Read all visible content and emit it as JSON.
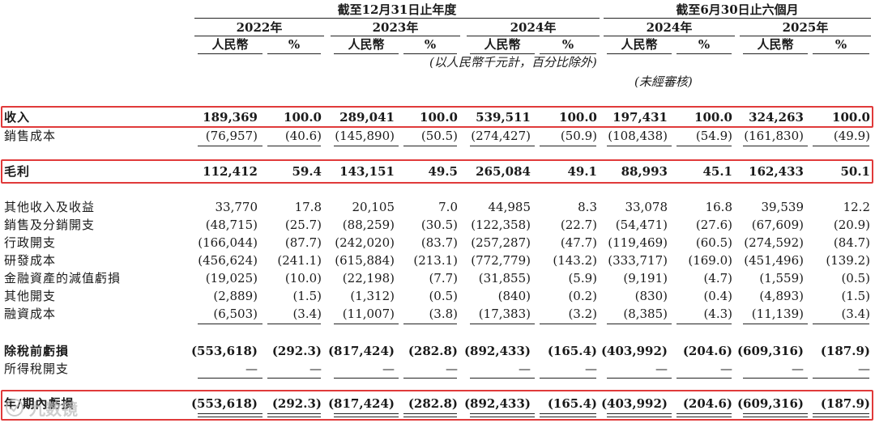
{
  "header": {
    "group_annual": "截至12月31日止年度",
    "group_half": "截至6月30日止六個月",
    "years": [
      "2022年",
      "2023年",
      "2024年",
      "2024年",
      "2025年"
    ],
    "currency_label": "人民幣",
    "percent_label": "%",
    "unit_note": "(以人民幣千元計，百分比除外)",
    "audit_note": "(未經審核)"
  },
  "rows": [
    {
      "label": "收入",
      "bold": true,
      "values": [
        "189,369",
        "100.0",
        "289,041",
        "100.0",
        "539,511",
        "100.0",
        "197,431",
        "100.0",
        "324,263",
        "100.0"
      ]
    },
    {
      "label": "銷售成本",
      "bold": false,
      "values": [
        "(76,957)",
        "(40.6)",
        "(145,890)",
        "(50.5)",
        "(274,427)",
        "(50.9)",
        "(108,438)",
        "(54.9)",
        "(161,830)",
        "(49.9)"
      ]
    },
    {
      "label": "毛利",
      "bold": true,
      "values": [
        "112,412",
        "59.4",
        "143,151",
        "49.5",
        "265,084",
        "49.1",
        "88,993",
        "45.1",
        "162,433",
        "50.1"
      ]
    },
    {
      "label": "其他收入及收益",
      "bold": false,
      "values": [
        "33,770",
        "17.8",
        "20,105",
        "7.0",
        "44,985",
        "8.3",
        "33,078",
        "16.8",
        "39,539",
        "12.2"
      ]
    },
    {
      "label": "銷售及分銷開支",
      "bold": false,
      "values": [
        "(48,715)",
        "(25.7)",
        "(88,259)",
        "(30.5)",
        "(122,358)",
        "(22.7)",
        "(54,471)",
        "(27.6)",
        "(67,609)",
        "(20.9)"
      ]
    },
    {
      "label": "行政開支",
      "bold": false,
      "values": [
        "(166,044)",
        "(87.7)",
        "(242,020)",
        "(83.7)",
        "(257,287)",
        "(47.7)",
        "(119,469)",
        "(60.5)",
        "(274,592)",
        "(84.7)"
      ]
    },
    {
      "label": "研發成本",
      "bold": false,
      "values": [
        "(456,624)",
        "(241.1)",
        "(615,884)",
        "(213.1)",
        "(772,779)",
        "(143.2)",
        "(333,717)",
        "(169.0)",
        "(451,496)",
        "(139.2)"
      ]
    },
    {
      "label": "金融資產的減值虧損",
      "bold": false,
      "values": [
        "(19,025)",
        "(10.0)",
        "(22,198)",
        "(7.7)",
        "(31,855)",
        "(5.9)",
        "(9,191)",
        "(4.7)",
        "(1,559)",
        "(0.5)"
      ]
    },
    {
      "label": "其他開支",
      "bold": false,
      "values": [
        "(2,889)",
        "(1.5)",
        "(1,312)",
        "(0.5)",
        "(840)",
        "(0.2)",
        "(830)",
        "(0.4)",
        "(4,893)",
        "(1.5)"
      ]
    },
    {
      "label": "融資成本",
      "bold": false,
      "values": [
        "(6,503)",
        "(3.4)",
        "(11,007)",
        "(3.8)",
        "(17,383)",
        "(3.2)",
        "(8,385)",
        "(4.3)",
        "(11,139)",
        "(3.4)"
      ]
    },
    {
      "label": "除稅前虧損",
      "bold": true,
      "values": [
        "(553,618)",
        "(292.3)",
        "(817,424)",
        "(282.8)",
        "(892,433)",
        "(165.4)",
        "(403,992)",
        "(204.6)",
        "(609,316)",
        "(187.9)"
      ]
    },
    {
      "label": "所得稅開支",
      "bold": false,
      "values": [
        "—",
        "—",
        "—",
        "—",
        "—",
        "—",
        "—",
        "—",
        "—",
        "—"
      ]
    },
    {
      "label": "年/期內虧損",
      "bold": true,
      "values": [
        "(553,618)",
        "(292.3)",
        "(817,424)",
        "(282.8)",
        "(892,433)",
        "(165.4)",
        "(403,992)",
        "(204.6)",
        "(609,316)",
        "(187.9)"
      ]
    }
  ],
  "highlight_color": "#e03a3a",
  "watermark": "九数镜"
}
